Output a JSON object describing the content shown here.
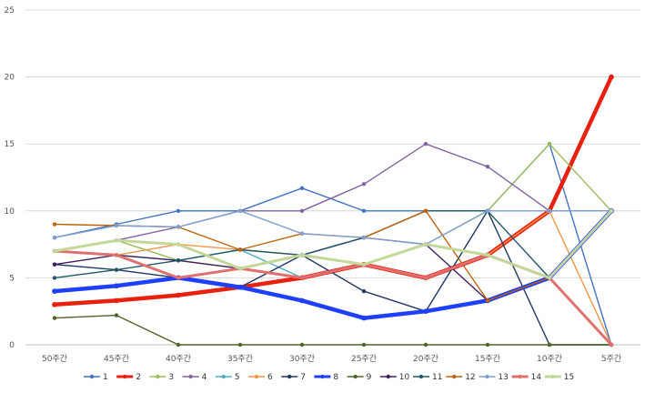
{
  "chart_data": {
    "type": "line",
    "title": "",
    "xlabel": "",
    "ylabel": "",
    "ylim": [
      0,
      25
    ],
    "yticks": [
      0,
      5,
      10,
      15,
      20,
      25
    ],
    "grid": "horizontal",
    "legend_position": "bottom",
    "categories": [
      "50주간",
      "45주간",
      "40주간",
      "35주간",
      "30주간",
      "25주간",
      "20주간",
      "15주간",
      "10주간",
      "5주간"
    ],
    "series": [
      {
        "name": "1",
        "color": "#4472c4",
        "width": 1.4,
        "values": [
          8,
          9,
          10,
          10,
          11.7,
          10,
          10,
          10,
          15,
          0
        ]
      },
      {
        "name": "2",
        "color": "#e8200f",
        "width": 4.5,
        "values": [
          3,
          3.3,
          3.7,
          4.3,
          5,
          6,
          5,
          6.7,
          10,
          20
        ]
      },
      {
        "name": "3",
        "color": "#9bbb59",
        "width": 1.4,
        "values": [
          7,
          7.8,
          6.3,
          5.7,
          6.7,
          6,
          7.5,
          10,
          15,
          10
        ]
      },
      {
        "name": "4",
        "color": "#8064a2",
        "width": 1.4,
        "values": [
          7,
          7.8,
          8.8,
          10,
          10,
          12,
          15,
          13.3,
          10,
          10
        ]
      },
      {
        "name": "5",
        "color": "#4bacc6",
        "width": 1.4,
        "values": [
          7,
          6.7,
          6.3,
          7.1,
          5,
          6,
          7.5,
          6.7,
          5,
          0
        ]
      },
      {
        "name": "6",
        "color": "#f79646",
        "width": 1.4,
        "values": [
          7,
          6.7,
          7.5,
          7.1,
          6.7,
          6,
          5,
          6.7,
          10,
          0
        ]
      },
      {
        "name": "7",
        "color": "#1f3864",
        "width": 1.4,
        "values": [
          6,
          5.6,
          5,
          4.3,
          6.7,
          4,
          2.5,
          10,
          0,
          0
        ]
      },
      {
        "name": "8",
        "color": "#1f3fff",
        "width": 4.5,
        "values": [
          4,
          4.4,
          5,
          4.3,
          3.3,
          2,
          2.5,
          3.3,
          5,
          10
        ]
      },
      {
        "name": "9",
        "color": "#4f6228",
        "width": 1.4,
        "values": [
          2,
          2.2,
          0,
          0,
          0,
          0,
          0,
          0,
          0,
          0
        ]
      },
      {
        "name": "10",
        "color": "#3f1f5f",
        "width": 1.4,
        "values": [
          6,
          6.7,
          6.3,
          5.7,
          6.7,
          8,
          7.5,
          3.3,
          5,
          10
        ]
      },
      {
        "name": "11",
        "color": "#215867",
        "width": 1.4,
        "values": [
          5,
          5.6,
          6.3,
          7.1,
          6.7,
          8,
          10,
          10,
          5,
          0
        ]
      },
      {
        "name": "12",
        "color": "#c0640b",
        "width": 1.4,
        "values": [
          9,
          8.9,
          8.8,
          7.1,
          8.3,
          8,
          10,
          3.3,
          5,
          0
        ]
      },
      {
        "name": "13",
        "color": "#7f9fd0",
        "width": 1.4,
        "values": [
          8,
          8.9,
          8.8,
          10,
          8.3,
          8,
          7.5,
          10,
          10,
          10
        ]
      },
      {
        "name": "14",
        "color": "#e07070",
        "width": 3.0,
        "values": [
          7,
          6.7,
          5,
          5.7,
          5,
          6,
          5,
          6.7,
          5,
          0
        ]
      },
      {
        "name": "15",
        "color": "#c4d79b",
        "width": 3.0,
        "values": [
          7,
          7.8,
          7.5,
          5.7,
          6.7,
          6,
          7.5,
          6.7,
          5,
          10
        ]
      }
    ]
  }
}
